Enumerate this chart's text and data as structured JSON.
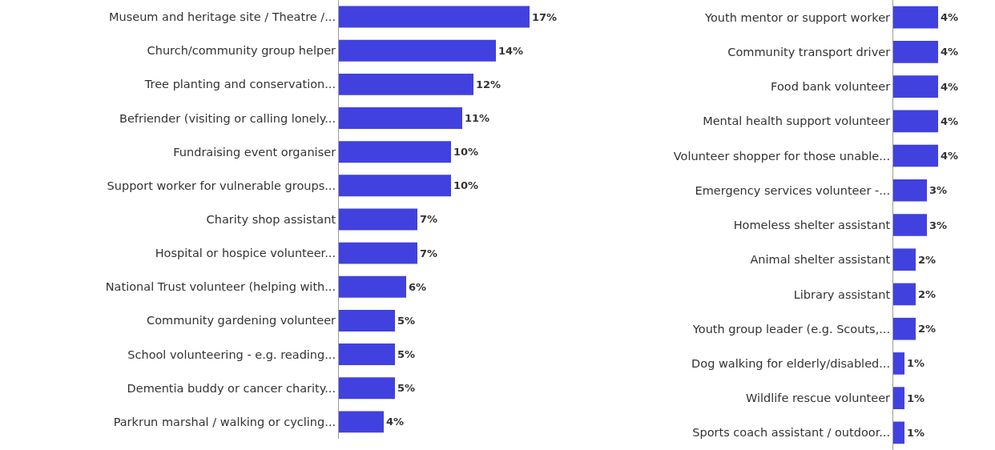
{
  "chart_data": [
    {
      "type": "bar",
      "orientation": "horizontal",
      "categories": [
        "Museum and heritage site / Theatre /...",
        "Church/community group helper",
        "Tree planting and conservation...",
        "Befriender (visiting or calling lonely...",
        "Fundraising event organiser",
        "Support worker for vulnerable groups...",
        "Charity shop assistant",
        "Hospital or hospice volunteer...",
        "National Trust volunteer (helping with...",
        "Community gardening volunteer",
        "School volunteering - e.g. reading...",
        "Dementia buddy or cancer charity...",
        "Parkrun marshal / walking or cycling..."
      ],
      "values": [
        17,
        14,
        12,
        11,
        10,
        10,
        7,
        7,
        6,
        5,
        5,
        5,
        4
      ],
      "value_labels": [
        "17%",
        "14%",
        "12%",
        "11%",
        "10%",
        "10%",
        "7%",
        "7%",
        "6%",
        "5%",
        "5%",
        "5%",
        "4%"
      ],
      "color": "#4141e0",
      "tick_labels": "y"
    },
    {
      "type": "bar",
      "orientation": "horizontal",
      "categories": [
        "Youth mentor or support worker",
        "Community transport driver",
        "Food bank volunteer",
        "Mental health support volunteer",
        "Volunteer shopper for those unable...",
        "Emergency services volunteer -...",
        "Homeless shelter assistant",
        "Animal shelter assistant",
        "Library assistant",
        "Youth group leader (e.g. Scouts,...",
        "Dog walking for elderly/disabled...",
        "Wildlife rescue volunteer",
        "Sports coach assistant / outdoor..."
      ],
      "values": [
        4,
        4,
        4,
        4,
        4,
        3,
        3,
        2,
        2,
        2,
        1,
        1,
        1
      ],
      "value_labels": [
        "4%",
        "4%",
        "4%",
        "4%",
        "4%",
        "3%",
        "3%",
        "2%",
        "2%",
        "2%",
        "1%",
        "1%",
        "1%"
      ],
      "color": "#4141e0",
      "tick_labels": "y"
    }
  ]
}
